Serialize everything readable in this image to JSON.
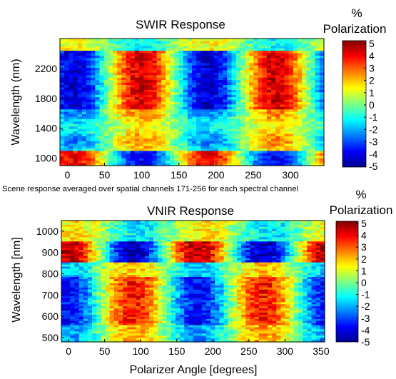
{
  "caption": "Scene response averaged over spatial channels 171-256 for each spectral channel",
  "colorbar_label_pct": "%",
  "colorbar_label_word": "Polarization",
  "colorbar_ticks": [
    "5",
    "4",
    "3",
    "2",
    "1",
    "0",
    "-1",
    "-2",
    "-3",
    "-4",
    "-5"
  ],
  "chart_data": [
    {
      "type": "heatmap",
      "title": "SWIR Response",
      "xlabel": "",
      "ylabel": "Wavelength (nm)",
      "xlim": [
        -10,
        345
      ],
      "ylim": [
        900,
        2600
      ],
      "x_ticks": [
        "0",
        "50",
        "100",
        "150",
        "200",
        "250",
        "300"
      ],
      "y_ticks": [
        "2200",
        "1800",
        "1400",
        "1000"
      ],
      "y_tick_values": [
        2200,
        1800,
        1400,
        1000
      ],
      "color_range": [
        -5,
        5
      ],
      "colorbar": [
        "5",
        "4",
        "3",
        "2",
        "1",
        "0",
        "-1",
        "-2",
        "-3",
        "-4",
        "-5"
      ]
    },
    {
      "type": "heatmap",
      "title": "VNIR Response",
      "xlabel": "Polarizer Angle [degrees]",
      "ylabel": "Wavelength [nm]",
      "xlim": [
        -10,
        355
      ],
      "ylim": [
        480,
        1050
      ],
      "x_ticks": [
        "0",
        "50",
        "100",
        "150",
        "200",
        "250",
        "300",
        "350"
      ],
      "y_ticks": [
        "500",
        "600",
        "700",
        "800",
        "900",
        "1000"
      ],
      "y_tick_values": [
        500,
        600,
        700,
        800,
        900,
        1000
      ],
      "color_range": [
        -5,
        5
      ],
      "colorbar": [
        "5",
        "4",
        "3",
        "2",
        "1",
        "0",
        "-1",
        "-2",
        "-3",
        "-4",
        "-5"
      ]
    }
  ]
}
